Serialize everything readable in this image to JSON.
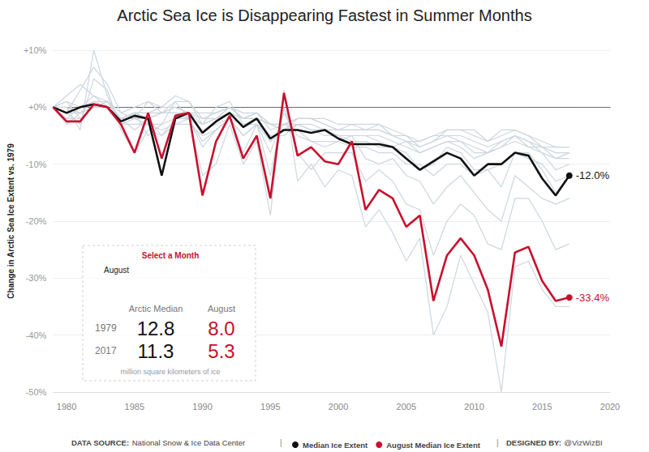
{
  "chart_data": {
    "type": "line",
    "title": "Arctic Sea Ice is Disappearing Fastest in Summer Months",
    "y_label": "Change in Arctic Sea Ice Extent vs. 1979",
    "x": [
      1979,
      1980,
      1981,
      1982,
      1983,
      1984,
      1985,
      1986,
      1987,
      1988,
      1989,
      1990,
      1991,
      1992,
      1993,
      1994,
      1995,
      1996,
      1997,
      1998,
      1999,
      2000,
      2001,
      2002,
      2003,
      2004,
      2005,
      2006,
      2007,
      2008,
      2009,
      2010,
      2011,
      2012,
      2013,
      2014,
      2015,
      2016,
      2017
    ],
    "xlim": [
      1979,
      2020
    ],
    "xticks": [
      1980,
      1985,
      1990,
      1995,
      2000,
      2005,
      2010,
      2015,
      2020
    ],
    "ylim": [
      -50,
      10
    ],
    "yticks": [
      {
        "value": -50,
        "label": "-50%"
      },
      {
        "value": -40,
        "label": "-40%"
      },
      {
        "value": -30,
        "label": "-30%"
      },
      {
        "value": -20,
        "label": "-20%"
      },
      {
        "value": -10,
        "label": "-10%"
      },
      {
        "value": 0,
        "label": "+0%"
      },
      {
        "value": 10,
        "label": "+10%"
      }
    ],
    "grid": true,
    "data_labels": true,
    "series": [
      {
        "color": "#cdd6de",
        "values": [
          0,
          1,
          0,
          1,
          0,
          -2,
          -1,
          -1,
          -1,
          -1,
          -2,
          -3,
          -2,
          -1,
          -2,
          -2,
          -3,
          -4,
          -3,
          -3,
          -4,
          -4,
          -4,
          -4,
          -4,
          -5,
          -6,
          -7,
          -6,
          -5,
          -6,
          -7,
          -8,
          -7,
          -5,
          -6,
          -8,
          -9,
          -9
        ]
      },
      {
        "color": "#cdd6de",
        "values": [
          0,
          0,
          -1,
          1,
          1,
          -2,
          -1,
          -2,
          -1,
          0,
          -1,
          -2,
          -2,
          0,
          -2,
          -1,
          -3,
          -3,
          -2,
          -2,
          -3,
          -4,
          -3,
          -4,
          -3,
          -5,
          -6,
          -6,
          -5,
          -5,
          -5,
          -6,
          -7,
          -6,
          -5,
          -6,
          -7,
          -8,
          -8
        ]
      },
      {
        "color": "#cdd6de",
        "values": [
          0,
          1,
          -2,
          0,
          0,
          -2,
          -1,
          -1,
          0,
          0,
          -1,
          -1,
          -1,
          0,
          -1,
          -1,
          -3,
          -3,
          -2,
          -2,
          -2,
          -3,
          -3,
          -3,
          -3,
          -4,
          -5,
          -6,
          -5,
          -4,
          -4,
          -4,
          -6,
          -5,
          -4,
          -5,
          -7,
          -7,
          -7
        ]
      },
      {
        "color": "#cdd6de",
        "values": [
          0,
          -1,
          -1,
          0,
          1,
          -2,
          -2,
          -2,
          -1,
          -1,
          -1,
          -3,
          -2,
          0,
          -2,
          -2,
          -3,
          -4,
          -2,
          -2,
          -3,
          -4,
          -4,
          -4,
          -4,
          -5,
          -5,
          -7,
          -6,
          -4,
          -4,
          -5,
          -6,
          -4,
          -4,
          -5,
          -6,
          -7,
          -7
        ]
      },
      {
        "color": "#cdd6de",
        "values": [
          0,
          -2,
          -2,
          0,
          0,
          -3,
          -2,
          -3,
          -3,
          -2,
          -2,
          -4,
          -3,
          -2,
          -3,
          -3,
          -5,
          -5,
          -3,
          -4,
          -4,
          -5,
          -5,
          -5,
          -6,
          -7,
          -6,
          -8,
          -7,
          -6,
          -6,
          -8,
          -8,
          -6,
          -5,
          -7,
          -7,
          -9,
          -8
        ]
      },
      {
        "color": "#cdd6de",
        "values": [
          0,
          -3,
          -1,
          0,
          1,
          -3,
          -3,
          -3,
          -4,
          -3,
          -3,
          -5,
          -4,
          -2,
          -5,
          -3,
          -6,
          -3,
          -4,
          -6,
          -6,
          -6,
          -7,
          -7,
          -8,
          -8,
          -10,
          -10,
          -12,
          -10,
          -10,
          -12,
          -11,
          -14,
          -8,
          -9,
          -10,
          -13,
          -12
        ]
      },
      {
        "color": "#cdd6de",
        "values": [
          0,
          -2,
          0,
          2,
          0,
          -2,
          -4,
          -2,
          -5,
          -3,
          -2,
          -6,
          -4,
          -2,
          -5,
          -3,
          -8,
          -1,
          -5,
          -6,
          -7,
          -6,
          -5,
          -9,
          -10,
          -9,
          -12,
          -13,
          -17,
          -14,
          -12,
          -15,
          -18,
          -20,
          -12,
          -14,
          -16,
          -17,
          -16
        ]
      },
      {
        "color": "#cdd6de",
        "values": [
          0,
          -1,
          -3,
          5,
          3,
          -4,
          -8,
          -4,
          -5,
          -2,
          -2,
          -12,
          -10,
          -3,
          -10,
          -6,
          -19,
          3,
          -13,
          -10,
          -14,
          -11,
          -12,
          -21,
          -18,
          -22,
          -27,
          -23,
          -40,
          -35,
          -26,
          -31,
          -36,
          -50,
          -28,
          -27,
          -32,
          -35,
          -35
        ]
      },
      {
        "color": "#cdd6de",
        "values": [
          0,
          0,
          -4,
          10,
          2,
          -3,
          -1,
          -5,
          -3,
          1,
          -2,
          -7,
          -4,
          -2,
          -8,
          -3,
          -12,
          0,
          -8,
          -11,
          -8,
          -8,
          -8,
          -13,
          -11,
          -13,
          -17,
          -18,
          -26,
          -20,
          -17,
          -19,
          -24,
          -25,
          -16,
          -16,
          -20,
          -25,
          -24
        ]
      },
      {
        "color": "#cdd6de",
        "values": [
          0,
          -1,
          3,
          7,
          4,
          -1,
          -2,
          1,
          0,
          2,
          1,
          -3,
          0,
          1,
          -3,
          -2,
          -6,
          -4,
          -3,
          -4,
          -5,
          -5,
          -6,
          -6,
          -7,
          -7,
          -8,
          -11,
          -10,
          -7,
          -8,
          -11,
          -11,
          -10,
          -8,
          -8,
          -11,
          -15,
          -12
        ]
      },
      {
        "color": "#cdd6de",
        "values": [
          0,
          2,
          4,
          2,
          1,
          -1,
          0,
          1,
          -1,
          1,
          1,
          -2,
          -1,
          0,
          -2,
          -1,
          -4,
          -3,
          -3,
          -4,
          -4,
          -5,
          -5,
          -5,
          -5,
          -6,
          -7,
          -8,
          -7,
          -6,
          -7,
          -9,
          -8,
          -7,
          -6,
          -7,
          -8,
          -11,
          -10
        ]
      },
      {
        "name": "Median Ice Extent",
        "color": "#111111",
        "values": [
          0,
          -1,
          0,
          0.5,
          0,
          -2.5,
          -1.5,
          -2,
          -12,
          -2,
          -1,
          -4.5,
          -2.5,
          -1,
          -3.5,
          -2,
          -5.5,
          -4,
          -4,
          -4.5,
          -4,
          -5.5,
          -6.5,
          -6.5,
          -6.5,
          -7,
          -9,
          -11,
          -9.5,
          -8,
          -9,
          -12,
          -10,
          -10,
          -8,
          -8.5,
          -12.5,
          -15.5,
          -12.0
        ],
        "value_labels": [
          null,
          null,
          null,
          null,
          null,
          null,
          null,
          null,
          null,
          null,
          null,
          null,
          null,
          null,
          null,
          null,
          null,
          null,
          null,
          null,
          null,
          null,
          null,
          null,
          null,
          null,
          null,
          null,
          null,
          null,
          null,
          null,
          null,
          null,
          null,
          null,
          null,
          null,
          "-12.0%"
        ]
      },
      {
        "name": "August Median Ice Extent",
        "color": "#c8102e",
        "values": [
          0,
          -2.5,
          -2.5,
          0.5,
          0,
          -3,
          -8,
          -1,
          -9,
          -1.5,
          -1,
          -15.5,
          -6,
          -1.5,
          -9,
          -5,
          -16,
          2.5,
          -8.5,
          -7,
          -9.5,
          -10,
          -6,
          -18,
          -14.5,
          -16,
          -21,
          -19,
          -34,
          -26,
          -23,
          -26,
          -32,
          -42,
          -25.5,
          -24.5,
          -30.5,
          -34,
          -33.4
        ],
        "value_labels": [
          null,
          null,
          null,
          null,
          null,
          null,
          null,
          null,
          null,
          null,
          null,
          null,
          null,
          null,
          null,
          null,
          null,
          null,
          null,
          null,
          null,
          null,
          null,
          null,
          null,
          null,
          null,
          null,
          null,
          null,
          null,
          null,
          null,
          null,
          null,
          null,
          null,
          null,
          "-33.4%"
        ]
      }
    ],
    "info_box": {
      "title": "Select a Month",
      "selected": "August",
      "columns": [
        "Arctic Median",
        "August"
      ],
      "rows": [
        {
          "label": "1979",
          "values": [
            "12.8",
            "8.0"
          ]
        },
        {
          "label": "2017",
          "values": [
            "11.3",
            "5.3"
          ]
        }
      ],
      "note": "million square kilometers of ice"
    },
    "footer": {
      "source_label": "DATA SOURCE:",
      "source": "National Snow & Ice Data Center",
      "separator": "|",
      "credit_label": "DESIGNED BY:",
      "credit": "@VizWizBI"
    }
  }
}
